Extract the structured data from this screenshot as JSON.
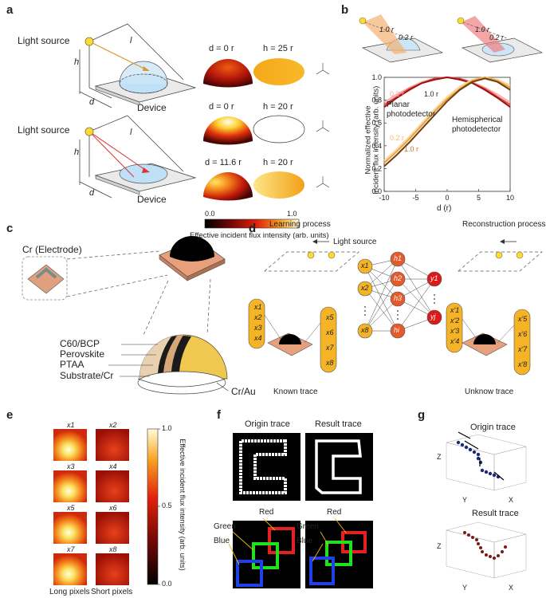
{
  "panels": {
    "a": {
      "letter": "a",
      "light_source_1": "Light source",
      "light_source_2": "Light source",
      "device_1": "Device",
      "device_2": "Device",
      "h": "h",
      "d": "d",
      "l": "l",
      "r": "r",
      "sphere_rows": [
        {
          "d_label": "d = 0 r",
          "h_label": "h = 25 r"
        },
        {
          "d_label": "d = 0 r",
          "h_label": "h = 20 r"
        },
        {
          "d_label": "d = 11.6 r",
          "h_label": "h = 20 r"
        }
      ],
      "colorbar_min": "0.0",
      "colorbar_max": "1.0",
      "colorbar_label": "Effective incident flux intensity (arb. units)",
      "colors": {
        "cb_dark": "#000000",
        "cb_mid1": "#7a0a05",
        "cb_mid2": "#e0200a",
        "cb_mid3": "#f9a020",
        "cb_light": "#ffffd8"
      }
    },
    "b": {
      "letter": "b",
      "inset_labels": [
        "1.0 r",
        "0.2 r",
        "1.0 r",
        "0.2 r"
      ],
      "curve_labels": {
        "planar_top": "0.2 r",
        "planar_bottom": "1.0 r",
        "hemi_top": "0.2 r",
        "hemi_bottom": "1.0 r"
      },
      "planar_label_1": "Planar",
      "planar_label_2": "photodetector",
      "hemi_label_1": "Hemispherical",
      "hemi_label_2": "photodetector",
      "ylabel_1": "Normalized effective",
      "ylabel_2": "incident flux intensity (arb. units)",
      "xlabel": "d (r)"
    },
    "c": {
      "letter": "c",
      "layer_labels": [
        "Cr (Electrode)",
        "C60/BCP",
        "Perovskite",
        "PTAA",
        "Substrate/Cr",
        "Cr/Au"
      ]
    },
    "d": {
      "letter": "d",
      "learning": "Learning process",
      "reconstruction": "Reconstruction process",
      "light_source": "Light source",
      "known": "Known trace",
      "unknown": "Unknow trace",
      "left_x": [
        "x1",
        "x2",
        "x3",
        "x4"
      ],
      "left_x_right": [
        "x5",
        "x6",
        "x7",
        "x8"
      ],
      "in_nodes": [
        "x1",
        "x2",
        "x8"
      ],
      "hidden_nodes": [
        "h1",
        "h2",
        "h3",
        "hi"
      ],
      "out_nodes": [
        "y1",
        "yj"
      ],
      "recon_x": [
        "x'1",
        "x'2",
        "x'3",
        "x'4"
      ],
      "recon_x_right": [
        "x'5",
        "x'6",
        "x'7",
        "x'8"
      ]
    },
    "e": {
      "letter": "e",
      "tiles": [
        "x1",
        "x2",
        "x3",
        "x4",
        "x5",
        "x6",
        "x7",
        "x8"
      ],
      "long_label": "Long pixels",
      "short_label": "Short pixels",
      "colorbar_ticks": [
        "1.0",
        "0.5",
        "0.0"
      ],
      "colorbar_label": "Effective incident flux intensity (arb. units)"
    },
    "f": {
      "letter": "f",
      "origin": "Origin trace",
      "result": "Result trace",
      "red": "Red",
      "green": "Green",
      "blue": "Blue",
      "red2": "Red",
      "green2": "Green",
      "blue2": "Blue"
    },
    "g": {
      "letter": "g",
      "origin": "Origin trace",
      "result": "Result trace",
      "axes": {
        "x": "X",
        "y": "Y",
        "z": "Z"
      }
    }
  },
  "chart_data": {
    "type": "line",
    "title": "",
    "xlabel": "d (r)",
    "ylabel": "Normalized effective incident flux intensity (arb. units)",
    "xlim": [
      -10,
      10
    ],
    "ylim": [
      0,
      1.0
    ],
    "xticks": [
      -10,
      -5,
      0,
      5,
      10
    ],
    "yticks": [
      0.0,
      0.2,
      0.4,
      0.6,
      0.8,
      1.0
    ],
    "series": [
      {
        "group": "planar",
        "color": "#f4b0a8",
        "x": [
          -10,
          -8,
          -6,
          -4,
          -2,
          0,
          2,
          4,
          6,
          8,
          10
        ],
        "y": [
          0.78,
          0.85,
          0.91,
          0.96,
          0.99,
          1.0,
          0.99,
          0.96,
          0.91,
          0.85,
          0.78
        ]
      },
      {
        "group": "planar",
        "color": "#e05050",
        "x": [
          -10,
          -8,
          -6,
          -4,
          -2,
          0,
          2,
          4,
          6,
          8,
          10
        ],
        "y": [
          0.76,
          0.83,
          0.9,
          0.95,
          0.99,
          1.0,
          0.99,
          0.95,
          0.9,
          0.83,
          0.76
        ]
      },
      {
        "group": "planar",
        "color": "#a01010",
        "x": [
          -10,
          -8,
          -6,
          -4,
          -2,
          0,
          2,
          4,
          6,
          8,
          10
        ],
        "y": [
          0.74,
          0.82,
          0.89,
          0.95,
          0.98,
          1.0,
          0.98,
          0.95,
          0.89,
          0.82,
          0.74
        ]
      },
      {
        "group": "hemi",
        "color": "#fad9a0",
        "x": [
          -10,
          -8,
          -6,
          -4,
          -2,
          0,
          2,
          4,
          6,
          8,
          10
        ],
        "y": [
          0.27,
          0.37,
          0.48,
          0.6,
          0.72,
          0.83,
          0.92,
          0.98,
          1.0,
          0.98,
          0.93
        ]
      },
      {
        "group": "hemi",
        "color": "#e8a040",
        "x": [
          -10,
          -8,
          -6,
          -4,
          -2,
          0,
          2,
          4,
          6,
          8,
          10
        ],
        "y": [
          0.25,
          0.35,
          0.46,
          0.58,
          0.7,
          0.81,
          0.9,
          0.97,
          1.0,
          0.97,
          0.91
        ]
      },
      {
        "group": "hemi",
        "color": "#704010",
        "x": [
          -10,
          -8,
          -6,
          -4,
          -2,
          0,
          2,
          4,
          6,
          8,
          10
        ],
        "y": [
          0.22,
          0.32,
          0.43,
          0.55,
          0.67,
          0.79,
          0.89,
          0.96,
          0.99,
          0.96,
          0.89
        ]
      }
    ]
  }
}
